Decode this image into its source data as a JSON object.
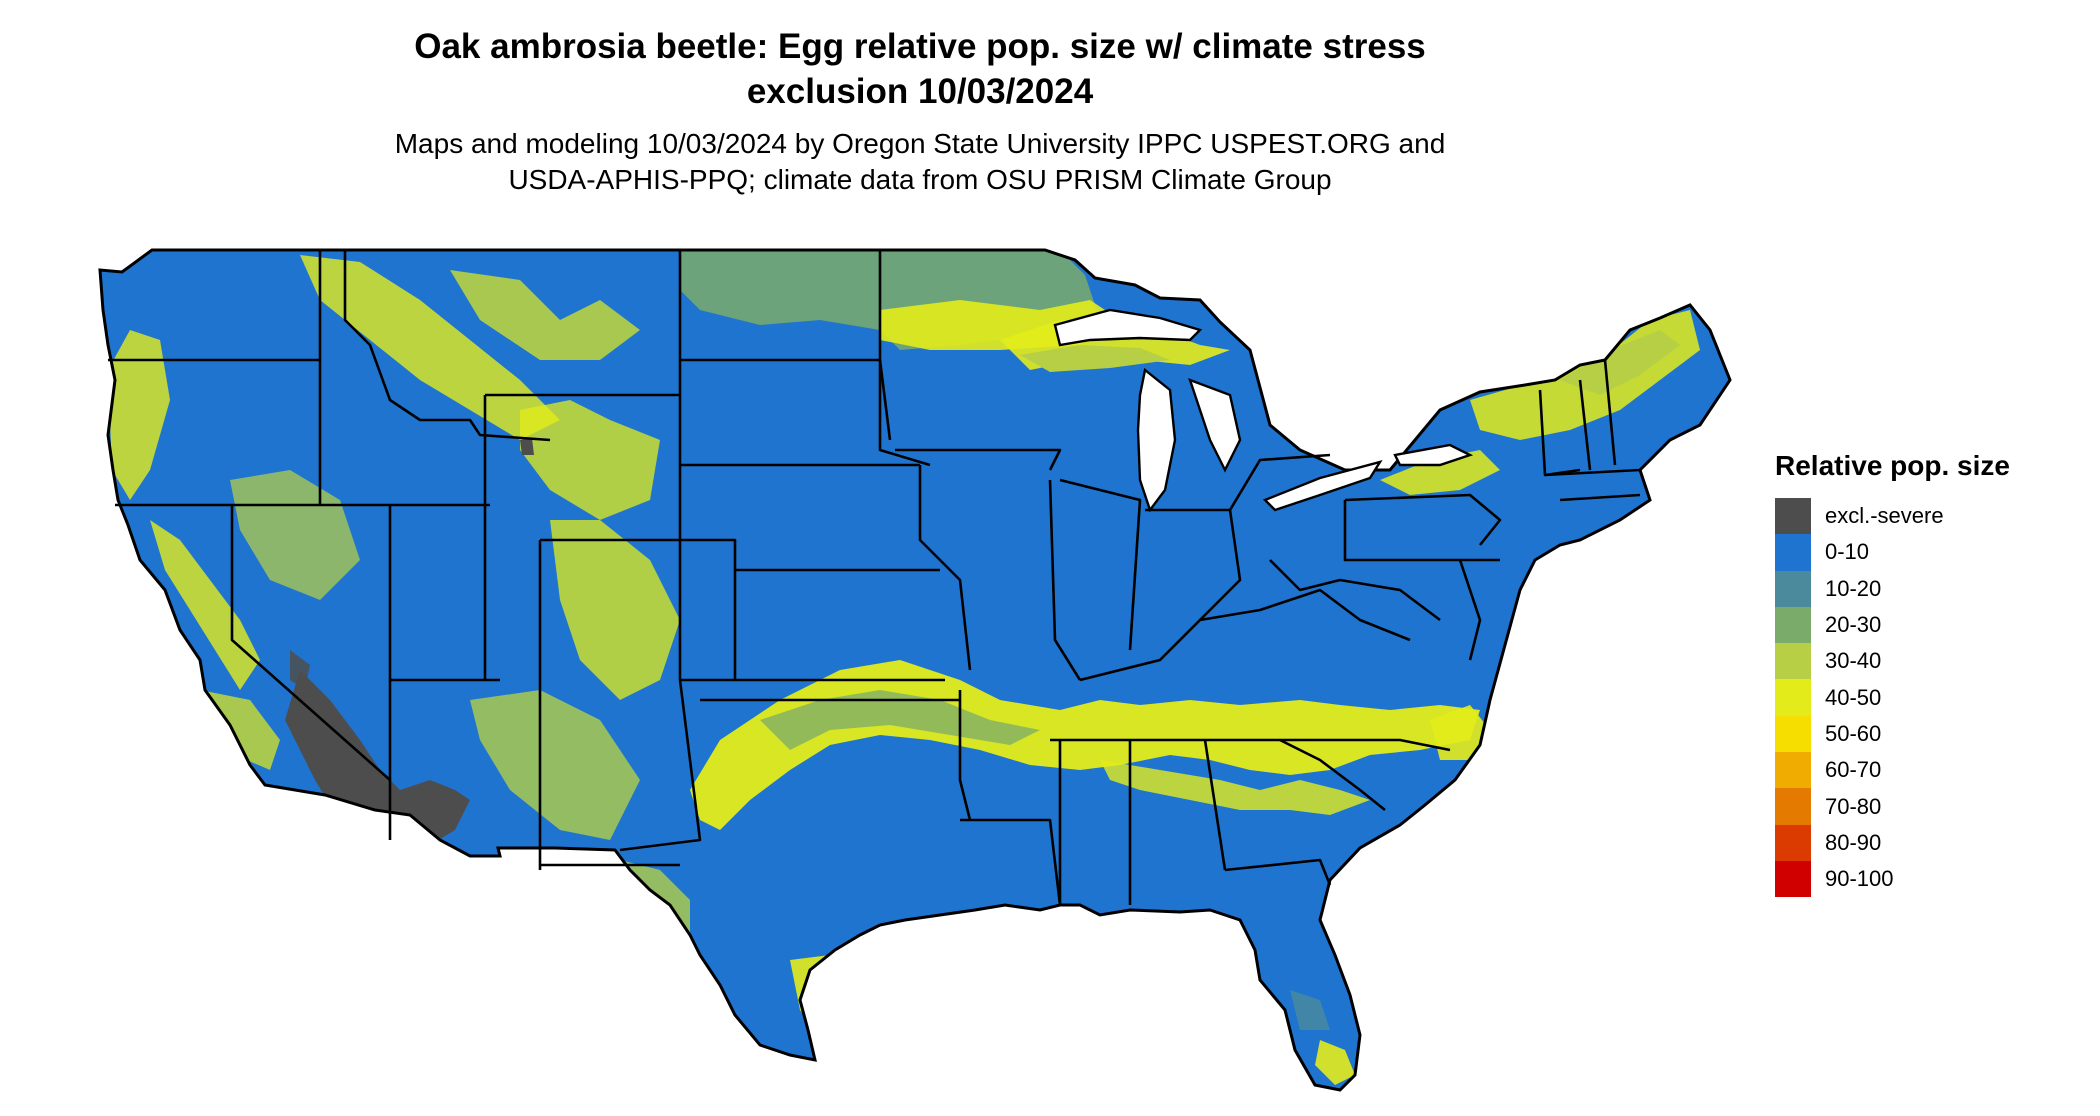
{
  "title": {
    "line1": "Oak ambrosia beetle: Egg relative pop. size w/ climate stress",
    "line2": "exclusion 10/03/2024"
  },
  "subtitle": {
    "line1": "Maps and modeling 10/03/2024 by Oregon State University IPPC USPEST.ORG and",
    "line2": "USDA-APHIS-PPQ; climate data from OSU PRISM Climate Group"
  },
  "legend": {
    "title": "Relative pop. size",
    "items": [
      {
        "label": "excl.-severe",
        "color": "#4d4d4d"
      },
      {
        "label": "0-10",
        "color": "#1f74d0"
      },
      {
        "label": "10-20",
        "color": "#4a8a9c"
      },
      {
        "label": "20-30",
        "color": "#7bab6b"
      },
      {
        "label": "30-40",
        "color": "#b6cf45"
      },
      {
        "label": "40-50",
        "color": "#e3ec1a"
      },
      {
        "label": "50-60",
        "color": "#f6df00"
      },
      {
        "label": "60-70",
        "color": "#f0ac00"
      },
      {
        "label": "70-80",
        "color": "#e57a00"
      },
      {
        "label": "80-90",
        "color": "#db3a00"
      },
      {
        "label": "90-100",
        "color": "#d10000"
      }
    ]
  },
  "map": {
    "region": "Contiguous United States",
    "dominant_class": "0-10",
    "colors": {
      "land": "#1f74d0",
      "warm_band": "#e3ec1a",
      "band_edge": "#b6cf45",
      "band_mid": "#7bab6b",
      "teal": "#4a8a9c",
      "excluded": "#4d4d4d",
      "border": "#000000"
    }
  }
}
